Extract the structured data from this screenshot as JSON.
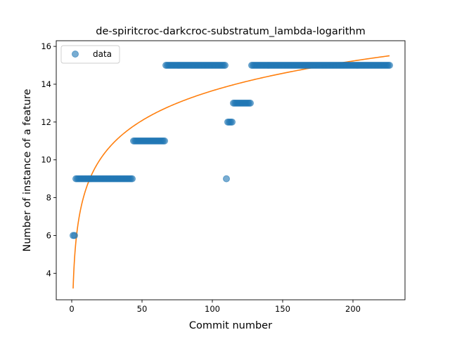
{
  "chart_data": {
    "type": "scatter",
    "title": "de-spiritcroc-darkcroc-substratum_lambda-logarithm",
    "xlabel": "Commit number",
    "ylabel": "Number of instance of a feature",
    "xlim": [
      -11,
      237
    ],
    "ylim": [
      2.6,
      16.3
    ],
    "xticks": [
      0,
      50,
      100,
      150,
      200
    ],
    "yticks": [
      4,
      6,
      8,
      10,
      12,
      14,
      16
    ],
    "grid": false,
    "legend": {
      "position": "top-left",
      "entries": [
        "data"
      ]
    },
    "colors": {
      "data": "#1f77b4",
      "fit": "#ff7f0e"
    },
    "series": [
      {
        "name": "data",
        "kind": "points",
        "runs": [
          {
            "x_start": 1,
            "x_end": 2,
            "y": 6
          },
          {
            "x_start": 3,
            "x_end": 43,
            "y": 9
          },
          {
            "x_start": 44,
            "x_end": 66,
            "y": 11
          },
          {
            "x_start": 67,
            "x_end": 109,
            "y": 15
          },
          {
            "x_start": 110,
            "x_end": 110,
            "y": 9
          },
          {
            "x_start": 111,
            "x_end": 114,
            "y": 12
          },
          {
            "x_start": 115,
            "x_end": 127,
            "y": 13
          },
          {
            "x_start": 128,
            "x_end": 226,
            "y": 15
          }
        ]
      },
      {
        "kind": "logarithmic-fit",
        "a": 2.27,
        "b": 3.2,
        "x_range": [
          1,
          226
        ]
      }
    ]
  }
}
